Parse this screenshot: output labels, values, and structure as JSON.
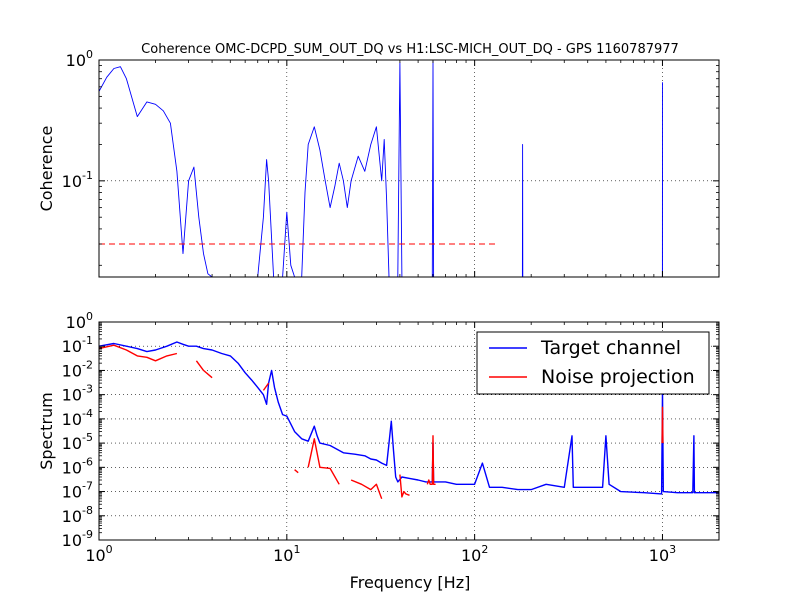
{
  "figure": {
    "title": "Coherence OMC-DCPD_SUM_OUT_DQ vs H1:LSC-MICH_OUT_DQ - GPS 1160787977",
    "xlabel": "Frequency [Hz]"
  },
  "chart_data": [
    {
      "type": "line",
      "name": "coherence-panel",
      "ylabel": "Coherence",
      "xscale": "log",
      "yscale": "log",
      "xlim": [
        1,
        2000
      ],
      "ylim": [
        0.016,
        1
      ],
      "grid": true,
      "x_tick_values": [
        1,
        10,
        100,
        1000
      ],
      "y_ticks": [
        {
          "value": 1,
          "base": "10",
          "exp": "0"
        },
        {
          "value": 0.1,
          "base": "10",
          "exp": "-1"
        }
      ],
      "series": [
        {
          "color": "#0000ff",
          "x": [
            1.0,
            1.1,
            1.2,
            1.3,
            1.4,
            1.6,
            1.8,
            2.0,
            2.2,
            2.4,
            2.6,
            2.8,
            3.0,
            3.2,
            3.4,
            3.6,
            3.8,
            4.0,
            4.5,
            5.0,
            6.0,
            7.0,
            7.5,
            7.8,
            8.0,
            8.5,
            9.0,
            9.5,
            10.0,
            10.5,
            11.0,
            11.5,
            12.0,
            12.5,
            13.0,
            14.0,
            15.0,
            16.0,
            17.0,
            18.0,
            19.0,
            20.0,
            21.0,
            22.0,
            24.0,
            26.0,
            28.0,
            30.0,
            32.0,
            33.0,
            34.0,
            35.0,
            36.0,
            37.0,
            39.0,
            40.0,
            41.0,
            42.0,
            45.0,
            50.0,
            55.0,
            59.5,
            60.0,
            60.5,
            65.0,
            80.0,
            100.0,
            120.0,
            150.0,
            179.5,
            180.0,
            180.5,
            250.0,
            330.0,
            400.0,
            500.0,
            600.0,
            700.0,
            800.0,
            999.0,
            1000.0,
            1001.0,
            1200.0,
            1500.0,
            2000.0
          ],
          "y": [
            0.55,
            0.72,
            0.85,
            0.88,
            0.7,
            0.34,
            0.45,
            0.43,
            0.38,
            0.3,
            0.12,
            0.025,
            0.1,
            0.13,
            0.05,
            0.025,
            0.017,
            0.016,
            0.016,
            0.016,
            0.016,
            0.016,
            0.05,
            0.15,
            0.1,
            0.016,
            0.016,
            0.016,
            0.055,
            0.02,
            0.016,
            0.016,
            0.016,
            0.08,
            0.2,
            0.28,
            0.18,
            0.1,
            0.06,
            0.09,
            0.14,
            0.1,
            0.06,
            0.1,
            0.16,
            0.12,
            0.2,
            0.28,
            0.1,
            0.22,
            0.07,
            0.016,
            0.016,
            0.016,
            0.016,
            0.95,
            0.016,
            0.016,
            0.016,
            0.016,
            0.016,
            0.016,
            0.98,
            0.016,
            0.016,
            0.016,
            0.016,
            0.016,
            0.016,
            0.016,
            0.2,
            0.016,
            0.016,
            0.016,
            0.016,
            0.016,
            0.016,
            0.016,
            0.016,
            0.016,
            0.65,
            0.016,
            0.016,
            0.016,
            0.016
          ]
        },
        {
          "color": "#ff0000",
          "style": "dashed",
          "x": [
            1,
            130
          ],
          "y": [
            0.03,
            0.03
          ]
        }
      ]
    },
    {
      "type": "line",
      "name": "spectrum-panel",
      "ylabel": "Spectrum",
      "xscale": "log",
      "yscale": "log",
      "xlim": [
        1,
        2000
      ],
      "ylim": [
        1e-09,
        1
      ],
      "grid": true,
      "legend_position": "top-right",
      "x_ticks": [
        {
          "value": 1,
          "base": "10",
          "exp": "0"
        },
        {
          "value": 10,
          "base": "10",
          "exp": "1"
        },
        {
          "value": 100,
          "base": "10",
          "exp": "2"
        },
        {
          "value": 1000,
          "base": "10",
          "exp": "3"
        }
      ],
      "y_ticks": [
        {
          "value": 1,
          "base": "10",
          "exp": "0"
        },
        {
          "value": 0.1,
          "base": "10",
          "exp": "-1"
        },
        {
          "value": 0.01,
          "base": "10",
          "exp": "-2"
        },
        {
          "value": 0.001,
          "base": "10",
          "exp": "-3"
        },
        {
          "value": 0.0001,
          "base": "10",
          "exp": "-4"
        },
        {
          "value": 1e-05,
          "base": "10",
          "exp": "-5"
        },
        {
          "value": 1e-06,
          "base": "10",
          "exp": "-6"
        },
        {
          "value": 1e-07,
          "base": "10",
          "exp": "-7"
        },
        {
          "value": 1e-08,
          "base": "10",
          "exp": "-8"
        },
        {
          "value": 1e-09,
          "base": "10",
          "exp": "-9"
        }
      ],
      "series": [
        {
          "name": "Target channel",
          "color": "#0000ff",
          "x": [
            1.0,
            1.2,
            1.4,
            1.6,
            1.8,
            2.0,
            2.3,
            2.6,
            2.8,
            3.0,
            3.3,
            3.6,
            4.0,
            4.5,
            5.0,
            5.5,
            6.0,
            6.5,
            7.0,
            7.5,
            7.8,
            8.0,
            8.3,
            8.6,
            9.0,
            9.5,
            10.0,
            11.0,
            12.0,
            13.0,
            14.0,
            14.5,
            15.0,
            17.0,
            20.0,
            23.0,
            26.0,
            28.0,
            30.0,
            32.0,
            34.0,
            35.0,
            36.0,
            37.0,
            38.0,
            39.0,
            41.0,
            45.0,
            50.0,
            55.0,
            59.5,
            60.0,
            60.5,
            70.0,
            80.0,
            100.0,
            110.0,
            120.0,
            140.0,
            170.0,
            200.0,
            240.0,
            300.0,
            330.0,
            335.0,
            400.0,
            480.0,
            500.0,
            520.0,
            600.0,
            800.0,
            990.0,
            1000.0,
            1010.0,
            1200.0,
            1450.0,
            1470.0,
            1480.0,
            1600.0,
            1900.0,
            2000.0
          ],
          "y": [
            0.1,
            0.13,
            0.1,
            0.08,
            0.06,
            0.07,
            0.1,
            0.15,
            0.12,
            0.1,
            0.1,
            0.08,
            0.07,
            0.05,
            0.04,
            0.02,
            0.008,
            0.004,
            0.002,
            0.001,
            0.0004,
            0.003,
            0.01,
            0.002,
            0.0005,
            0.00015,
            0.00013,
            3e-05,
            1.5e-05,
            1.2e-05,
            5e-05,
            2e-05,
            1e-05,
            8e-06,
            4e-06,
            3.5e-06,
            3e-06,
            2.2e-06,
            2e-06,
            1.5e-06,
            1.2e-06,
            1e-05,
            8e-05,
            5e-06,
            4e-07,
            2.5e-07,
            4e-07,
            3.5e-07,
            3e-07,
            2.5e-07,
            2.5e-07,
            1e-05,
            2.5e-07,
            2.5e-07,
            2e-07,
            2e-07,
            1.5e-06,
            1.5e-07,
            1.5e-07,
            1.2e-07,
            1.2e-07,
            2e-07,
            1.5e-07,
            2e-05,
            1.5e-07,
            1.5e-07,
            1.5e-07,
            2e-05,
            2e-07,
            1e-07,
            9e-08,
            8e-08,
            0.0015,
            1e-07,
            9e-08,
            9e-08,
            2e-05,
            9e-08,
            9e-08,
            9e-08,
            9e-08
          ]
        },
        {
          "name": "Noise projection",
          "color": "#ff0000",
          "segments": [
            {
              "x": [
                1.0,
                1.2,
                1.4,
                1.6,
                1.8,
                2.0,
                2.3,
                2.6
              ],
              "y": [
                0.08,
                0.11,
                0.07,
                0.04,
                0.035,
                0.025,
                0.04,
                0.05
              ]
            },
            {
              "x": [
                3.3,
                3.6,
                4.0
              ],
              "y": [
                0.025,
                0.01,
                0.005
              ]
            },
            {
              "x": [
                7.5,
                8.0
              ],
              "y": [
                0.0015,
                0.003
              ]
            },
            {
              "x": [
                11.0,
                11.5
              ],
              "y": [
                8e-07,
                6e-07
              ]
            },
            {
              "x": [
                13.0,
                14.0,
                15.0,
                17.0,
                19.0
              ],
              "y": [
                1e-06,
                1.5e-05,
                1e-06,
                9e-07,
                2e-07
              ]
            },
            {
              "x": [
                22.0,
                25.0,
                28.0,
                30.0,
                32.0
              ],
              "y": [
                3e-07,
                2e-07,
                1.2e-07,
                2e-07,
                5e-08
              ]
            },
            {
              "x": [
                40.0,
                41.0,
                42.0,
                43.0,
                45.0
              ],
              "y": [
                5e-07,
                6e-08,
                1e-07,
                8e-08,
                7e-08
              ]
            },
            {
              "x": [
                56.0,
                57.0,
                58.0,
                59.5,
                60.0,
                60.5,
                62.0
              ],
              "y": [
                2e-07,
                3e-07,
                2e-07,
                2e-07,
                2e-05,
                2e-07,
                2e-07
              ]
            },
            {
              "x": [
                995.0,
                1000.0,
                1005.0
              ],
              "y": [
                1e-05,
                0.0003,
                1e-05
              ]
            }
          ]
        }
      ]
    }
  ]
}
